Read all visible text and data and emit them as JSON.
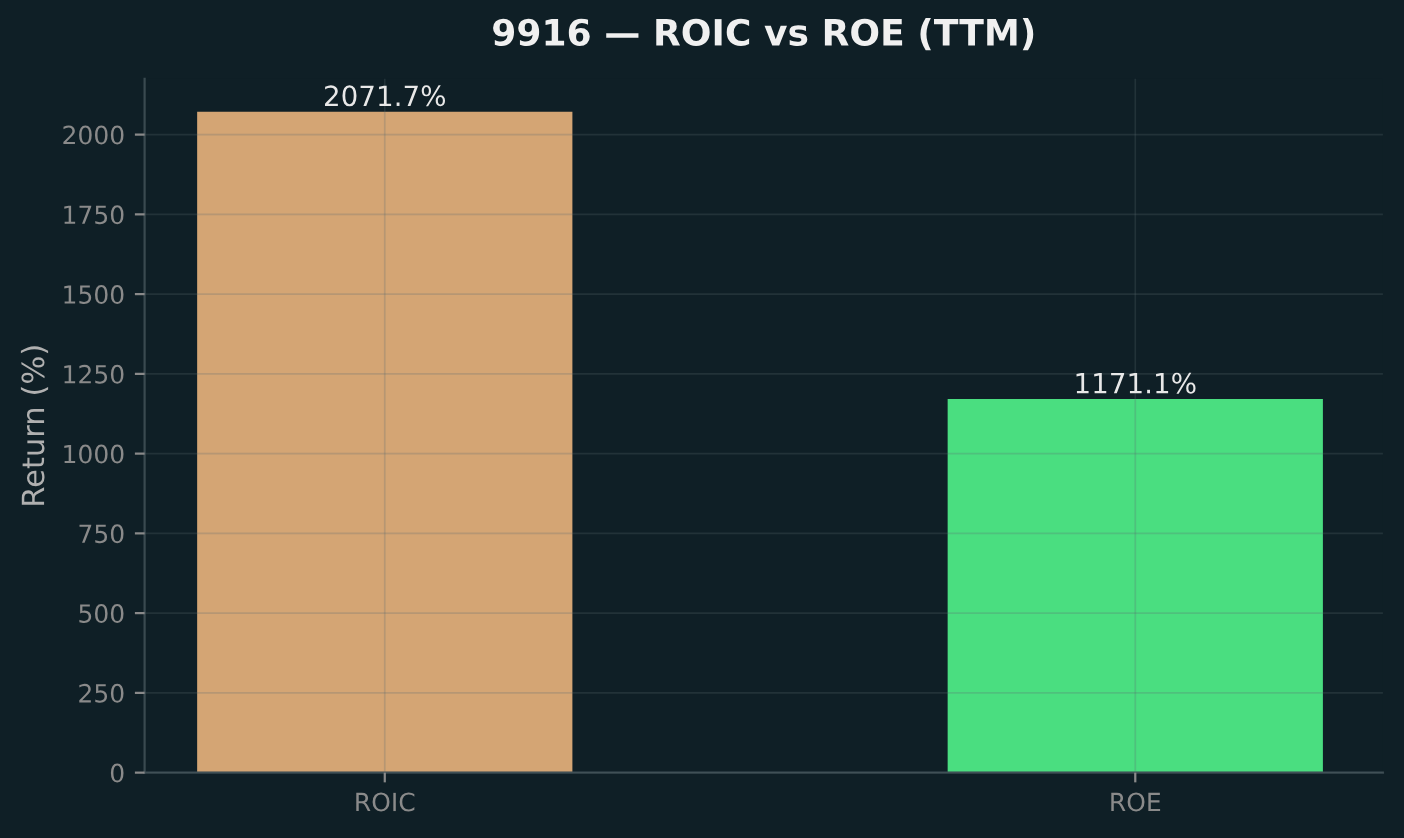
{
  "chart_data": {
    "type": "bar",
    "title": "9916 — ROIC vs ROE (TTM)",
    "ylabel": "Return (%)",
    "categories": [
      "ROIC",
      "ROE"
    ],
    "values": [
      2071.7,
      1171.1
    ],
    "colors": [
      "#d4a574",
      "#4ade80"
    ],
    "value_labels": [
      "2071.7%",
      "1171.1%"
    ],
    "ylim": [
      0,
      2175
    ],
    "yticks": [
      0,
      250,
      500,
      750,
      1000,
      1250,
      1500,
      1750,
      2000
    ],
    "grid": true,
    "legend": false
  }
}
